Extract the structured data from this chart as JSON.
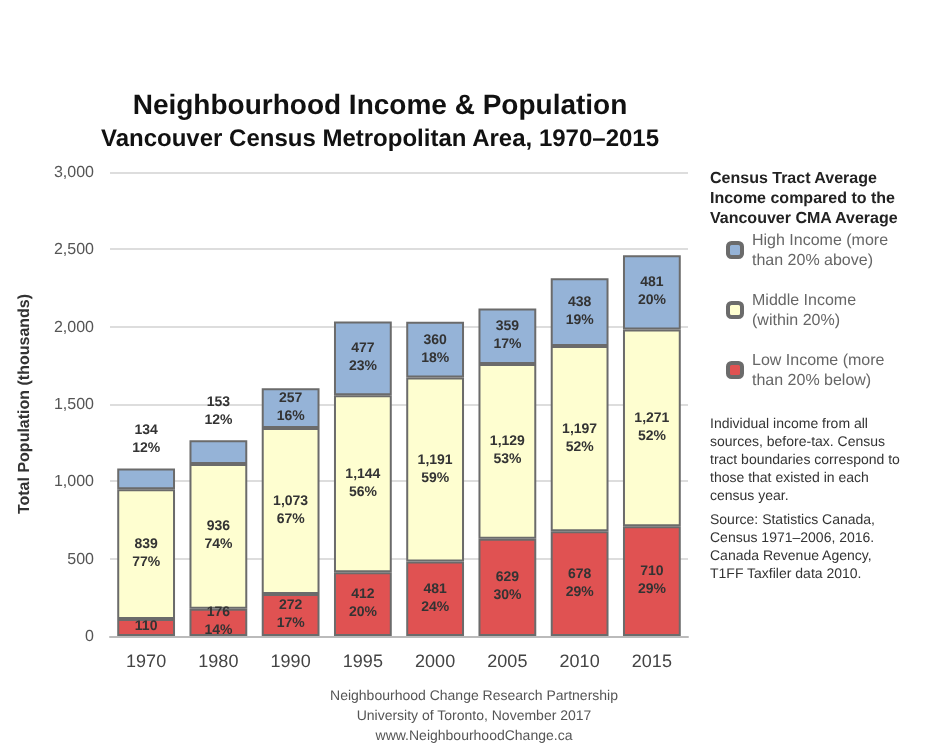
{
  "chart_data": {
    "type": "bar",
    "stacked": true,
    "title": "Neighbourhood Income & Population",
    "subtitle": "Vancouver Census Metropolitan Area, 1970–2015",
    "ylabel": "Total Population (thousands)",
    "legend_title": "Census Tract Average Income compared to the Vancouver CMA Average",
    "categories": [
      "1970",
      "1980",
      "1990",
      "1995",
      "2000",
      "2005",
      "2010",
      "2015"
    ],
    "series": [
      {
        "name": "Low Income (more than 20% below)",
        "color": "#e05252",
        "values": [
          110,
          176,
          272,
          412,
          481,
          629,
          678,
          710
        ],
        "value_labels": [
          "110",
          "176\n14%",
          "272\n17%",
          "412\n20%",
          "481\n24%",
          "629\n30%",
          "678\n29%",
          "710\n29%"
        ]
      },
      {
        "name": "Middle Income (within 20%)",
        "color": "#fefed0",
        "values": [
          839,
          936,
          1073,
          1144,
          1191,
          1129,
          1197,
          1271
        ],
        "value_labels": [
          "839\n77%",
          "936\n74%",
          "1,073\n67%",
          "1,144\n56%",
          "1,191\n59%",
          "1,129\n53%",
          "1,197\n52%",
          "1,271\n52%"
        ]
      },
      {
        "name": "High Income (more than 20% above)",
        "color": "#95b3d7",
        "values": [
          134,
          153,
          257,
          477,
          360,
          359,
          438,
          481
        ],
        "value_labels": [
          "134\n12%",
          "153\n12%",
          "257\n16%",
          "477\n23%",
          "360\n18%",
          "359\n17%",
          "438\n19%",
          "481\n20%"
        ]
      }
    ],
    "ylim": [
      0,
      3000
    ],
    "yticks": [
      0,
      500,
      {
        "value": 1000,
        "label": "1,000"
      },
      {
        "value": 1500,
        "label": "1,500"
      },
      {
        "value": 2000,
        "label": "2,000"
      },
      {
        "value": 2500,
        "label": "2,500"
      },
      {
        "value": 3000,
        "label": "3,000"
      }
    ],
    "grid": "y",
    "legend": "right",
    "annotations": [
      "Individual income from all sources, before-tax. Census tract boundaries correspond to those that existed in each census year.",
      "Source: Statistics Canada, Census 1971–2006, 2016. Canada Revenue Agency, T1FF Taxfiler data 2010.",
      "Neighbourhood Change Research Partnership",
      "University of Toronto, November 2017",
      "www.NeighbourhoodChange.ca"
    ]
  }
}
